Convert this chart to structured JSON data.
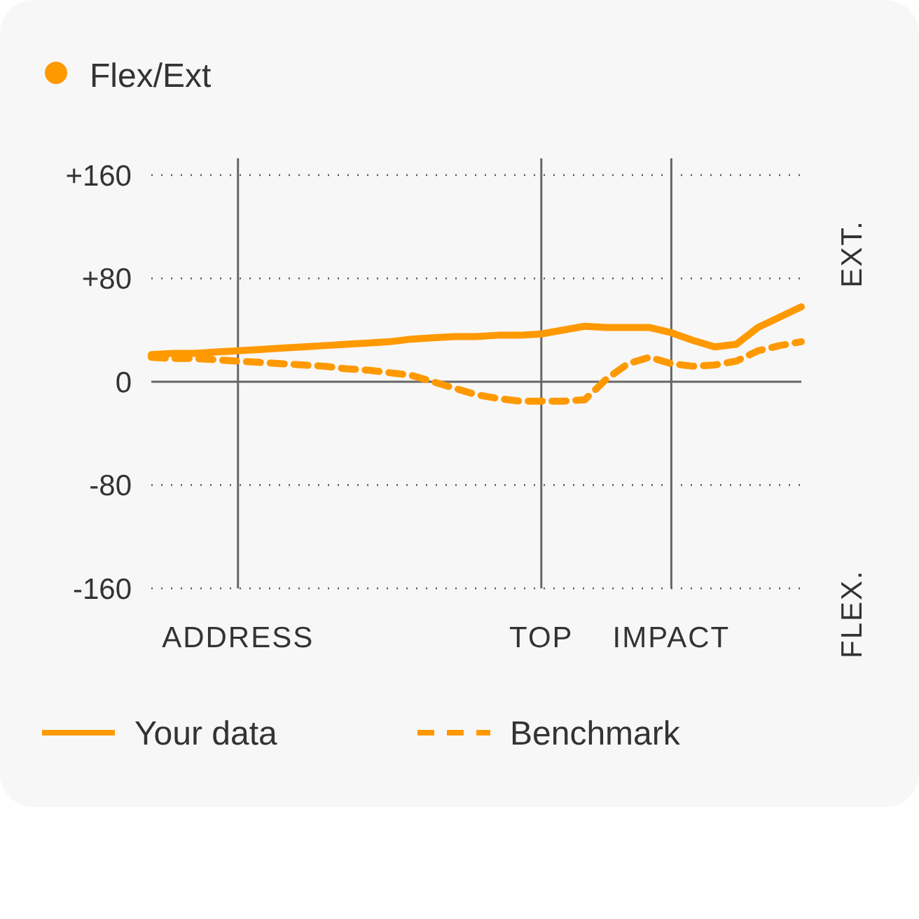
{
  "chart_data": {
    "type": "line",
    "title": "Flex/Ext",
    "categories": [
      null,
      null,
      null,
      null,
      "ADDRESS",
      null,
      null,
      null,
      null,
      null,
      null,
      null,
      null,
      null,
      null,
      null,
      null,
      null,
      "TOP",
      null,
      null,
      null,
      null,
      null,
      "IMPACT",
      null,
      null,
      null,
      null,
      null,
      null
    ],
    "ylim": [
      -160,
      160
    ],
    "yticks": [
      {
        "value": 160,
        "label": "+160"
      },
      {
        "value": 80,
        "label": "+80"
      },
      {
        "value": 0,
        "label": "0"
      },
      {
        "value": -80,
        "label": "-80"
      },
      {
        "value": -160,
        "label": "-160"
      }
    ],
    "grid": true,
    "legend": "bottom",
    "annotations": [
      "EXT.",
      "FLEX."
    ],
    "series": [
      {
        "name": "Your data",
        "color": "#ff9900",
        "line_style": "solid",
        "values": [
          21,
          22,
          22,
          23,
          24,
          25,
          26,
          27,
          28,
          29,
          30,
          31,
          33,
          34,
          35,
          35,
          36,
          36,
          37,
          40,
          43,
          42,
          42,
          42,
          38,
          32,
          27,
          29,
          42,
          50,
          58
        ]
      },
      {
        "name": "Benchmark",
        "color": "#ff9900",
        "line_style": "dashed",
        "values": [
          19,
          18,
          18,
          17,
          16,
          15,
          14,
          13,
          12,
          10,
          9,
          7,
          5,
          0,
          -5,
          -10,
          -13,
          -15,
          -15,
          -15,
          -14,
          2,
          14,
          19,
          14,
          12,
          13,
          16,
          24,
          28,
          31
        ]
      }
    ]
  }
}
